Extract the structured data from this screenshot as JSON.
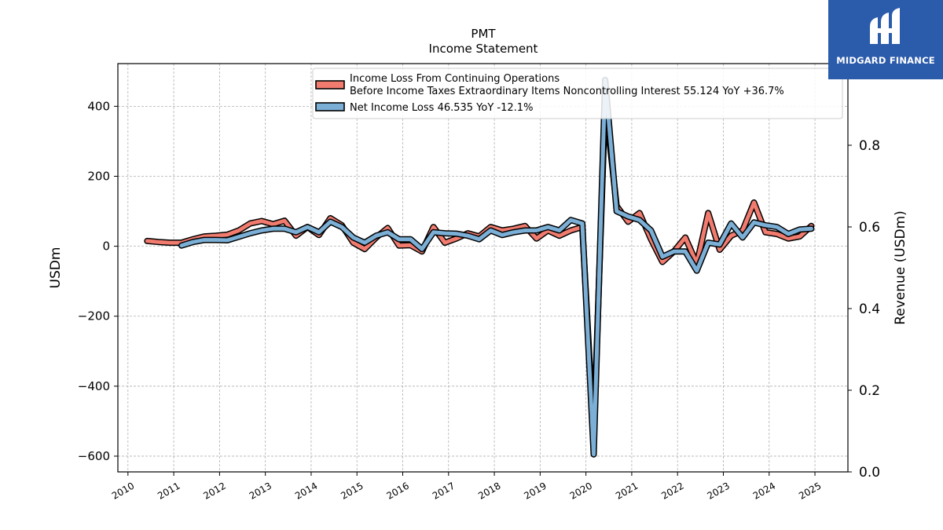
{
  "chart_data": {
    "type": "line",
    "title": "PMT",
    "subtitle": "Income Statement",
    "ylabel": "USDm",
    "ylabel_right": "Revenue (USDm)",
    "ylim": [
      -645,
      522
    ],
    "ylim_right": [
      0,
      1.0
    ],
    "yticks": [
      400,
      200,
      0,
      -200,
      -400,
      -600
    ],
    "ytick_labels": [
      "400",
      "200",
      "0",
      "−200",
      "−400",
      "−600"
    ],
    "yticks_right": [
      0.8,
      0.6,
      0.4,
      0.2,
      0.0
    ],
    "ytick_labels_right": [
      "0.8",
      "0.6",
      "0.4",
      "0.2",
      "0.0"
    ],
    "xlim": [
      2009.78,
      2025.72
    ],
    "xticks": [
      2010,
      2011,
      2012,
      2013,
      2014,
      2015,
      2016,
      2017,
      2018,
      2019,
      2020,
      2021,
      2022,
      2023,
      2024,
      2025
    ],
    "xtick_labels": [
      "2010",
      "2011",
      "2012",
      "2013",
      "2014",
      "2015",
      "2016",
      "2017",
      "2018",
      "2019",
      "2020",
      "2021",
      "2022",
      "2023",
      "2024",
      "2025"
    ],
    "grid": true,
    "legend_position": "top-right",
    "series": [
      {
        "name": "Income Loss From Continuing Operations\nBefore Income Taxes Extraordinary Items Noncontrolling Interest  55.124 YoY +36.7%",
        "color": "#f07b6e",
        "points": [
          [
            2010.42,
            15
          ],
          [
            2010.67,
            12
          ],
          [
            2010.92,
            10
          ],
          [
            2011.17,
            10
          ],
          [
            2011.42,
            20
          ],
          [
            2011.67,
            28
          ],
          [
            2011.92,
            30
          ],
          [
            2012.17,
            33
          ],
          [
            2012.42,
            45
          ],
          [
            2012.67,
            65
          ],
          [
            2012.92,
            72
          ],
          [
            2013.17,
            63
          ],
          [
            2013.42,
            73
          ],
          [
            2013.67,
            30
          ],
          [
            2013.92,
            55
          ],
          [
            2014.17,
            32
          ],
          [
            2014.42,
            80
          ],
          [
            2014.67,
            60
          ],
          [
            2014.92,
            10
          ],
          [
            2015.17,
            -8
          ],
          [
            2015.42,
            25
          ],
          [
            2015.67,
            52
          ],
          [
            2015.92,
            2
          ],
          [
            2016.17,
            3
          ],
          [
            2016.42,
            -15
          ],
          [
            2016.67,
            55
          ],
          [
            2016.92,
            10
          ],
          [
            2017.17,
            22
          ],
          [
            2017.42,
            37
          ],
          [
            2017.67,
            28
          ],
          [
            2017.92,
            55
          ],
          [
            2018.17,
            45
          ],
          [
            2018.42,
            50
          ],
          [
            2018.67,
            58
          ],
          [
            2018.92,
            22
          ],
          [
            2019.17,
            45
          ],
          [
            2019.42,
            30
          ],
          [
            2019.67,
            45
          ],
          [
            2019.92,
            55
          ],
          [
            2020.17,
            -545
          ],
          [
            2020.42,
            415
          ],
          [
            2020.67,
            115
          ],
          [
            2020.92,
            70
          ],
          [
            2021.17,
            95
          ],
          [
            2021.42,
            20
          ],
          [
            2021.67,
            -45
          ],
          [
            2021.92,
            -15
          ],
          [
            2022.17,
            25
          ],
          [
            2022.42,
            -50
          ],
          [
            2022.67,
            95
          ],
          [
            2022.92,
            -10
          ],
          [
            2023.17,
            30
          ],
          [
            2023.42,
            45
          ],
          [
            2023.67,
            125
          ],
          [
            2023.92,
            40
          ],
          [
            2024.17,
            35
          ],
          [
            2024.42,
            22
          ],
          [
            2024.67,
            28
          ],
          [
            2024.92,
            58
          ]
        ]
      },
      {
        "name": "Net Income Loss  46.535 YoY -12.1%",
        "color": "#7bafd6",
        "points": [
          [
            2011.17,
            2
          ],
          [
            2011.42,
            12
          ],
          [
            2011.67,
            18
          ],
          [
            2011.92,
            18
          ],
          [
            2012.17,
            17
          ],
          [
            2012.42,
            27
          ],
          [
            2012.67,
            37
          ],
          [
            2012.92,
            45
          ],
          [
            2013.17,
            50
          ],
          [
            2013.42,
            50
          ],
          [
            2013.67,
            40
          ],
          [
            2013.92,
            55
          ],
          [
            2014.17,
            40
          ],
          [
            2014.42,
            70
          ],
          [
            2014.67,
            55
          ],
          [
            2014.92,
            25
          ],
          [
            2015.17,
            10
          ],
          [
            2015.42,
            30
          ],
          [
            2015.67,
            40
          ],
          [
            2015.92,
            20
          ],
          [
            2016.17,
            20
          ],
          [
            2016.42,
            -8
          ],
          [
            2016.67,
            40
          ],
          [
            2016.92,
            37
          ],
          [
            2017.17,
            36
          ],
          [
            2017.42,
            30
          ],
          [
            2017.67,
            20
          ],
          [
            2017.92,
            45
          ],
          [
            2018.17,
            32
          ],
          [
            2018.42,
            40
          ],
          [
            2018.67,
            45
          ],
          [
            2018.92,
            45
          ],
          [
            2019.17,
            55
          ],
          [
            2019.42,
            45
          ],
          [
            2019.67,
            75
          ],
          [
            2019.92,
            65
          ],
          [
            2020.17,
            -595
          ],
          [
            2020.42,
            475
          ],
          [
            2020.67,
            100
          ],
          [
            2020.92,
            85
          ],
          [
            2021.17,
            75
          ],
          [
            2021.42,
            45
          ],
          [
            2021.67,
            -30
          ],
          [
            2021.92,
            -15
          ],
          [
            2022.17,
            -15
          ],
          [
            2022.42,
            -70
          ],
          [
            2022.67,
            10
          ],
          [
            2022.92,
            5
          ],
          [
            2023.17,
            65
          ],
          [
            2023.42,
            25
          ],
          [
            2023.67,
            68
          ],
          [
            2023.92,
            60
          ],
          [
            2024.17,
            55
          ],
          [
            2024.42,
            35
          ],
          [
            2024.67,
            48
          ],
          [
            2024.92,
            50
          ]
        ]
      }
    ]
  },
  "logo": {
    "text": "MIDGARD FINANCE"
  }
}
